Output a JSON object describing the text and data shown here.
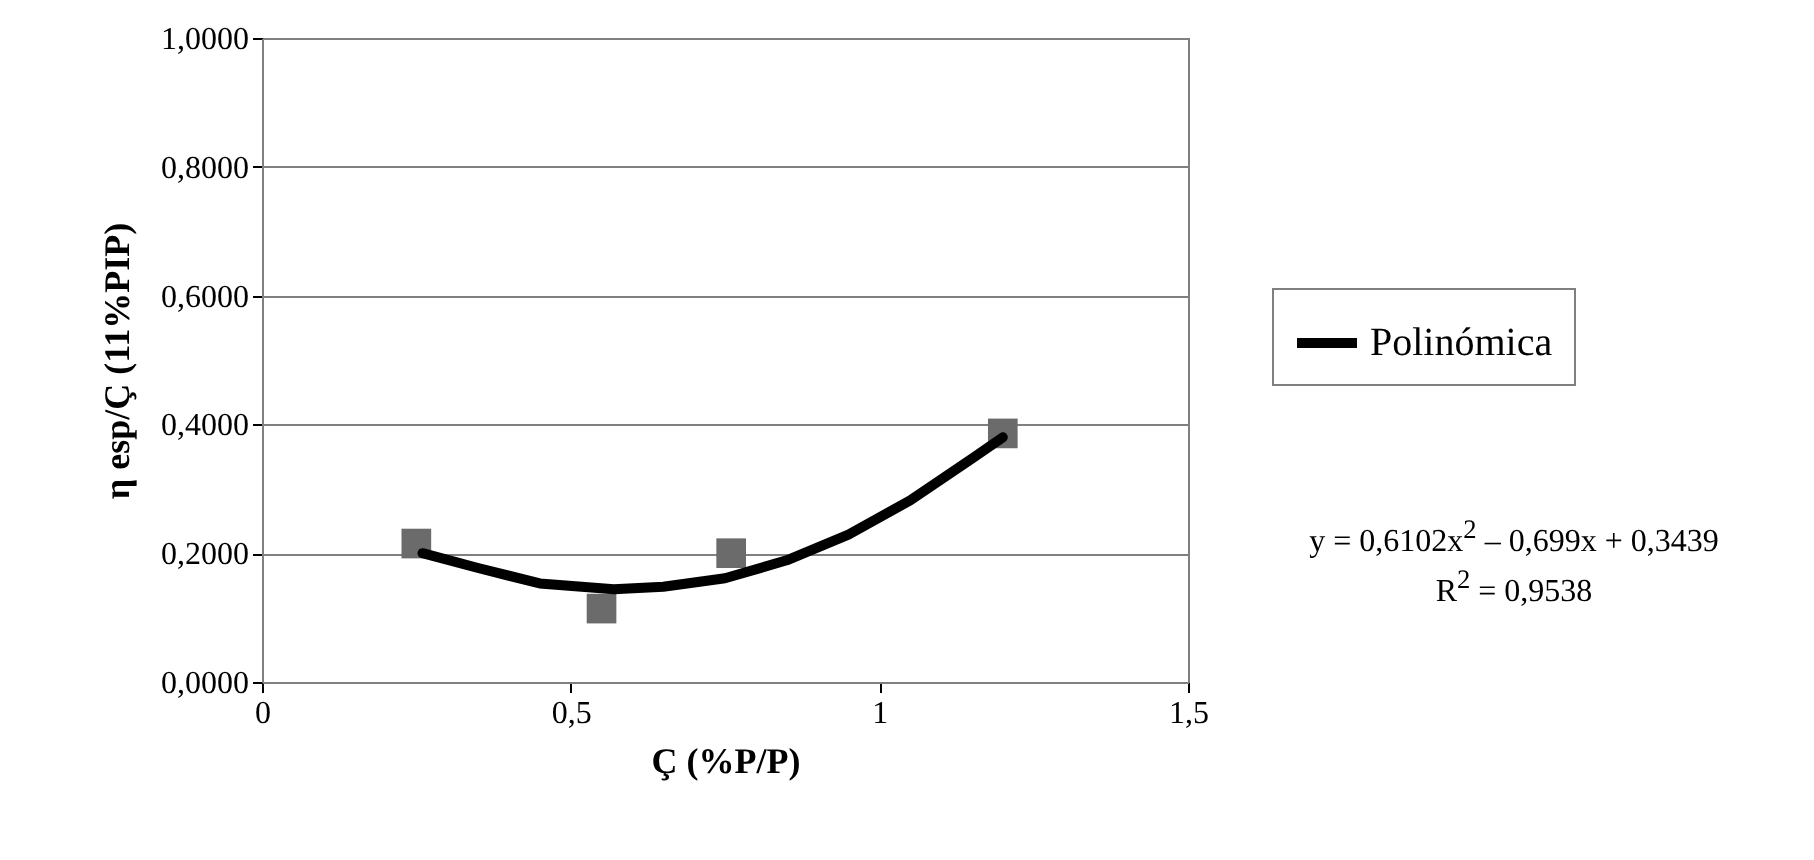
{
  "chart_data": {
    "type": "scatter",
    "xlabel": "Ç (%P/P)",
    "ylabel": "η esp/Ç (11%PIP)",
    "xlim": [
      0,
      1.5
    ],
    "xticks": [
      0,
      {
        "value": 0.5,
        "label": "0,5"
      },
      1,
      {
        "value": 1.5,
        "label": "1,5"
      }
    ],
    "ylim": [
      0,
      1
    ],
    "yticks": [
      {
        "value": 0,
        "label": "0,0000"
      },
      {
        "value": 0.2,
        "label": "0,2000"
      },
      {
        "value": 0.4,
        "label": "0,4000"
      },
      {
        "value": 0.6,
        "label": "0,6000"
      },
      {
        "value": 0.8,
        "label": "0,8000"
      },
      {
        "value": 1,
        "label": "1,0000"
      }
    ],
    "grid": "y",
    "legend": "right",
    "marker": "square",
    "series": [
      {
        "type": "scatter",
        "color": "#6b6b6b",
        "x": [
          0.25,
          0.55,
          0.76,
          1.2
        ],
        "values": [
          0.215,
          0.114,
          0.2,
          0.386
        ]
      },
      {
        "type": "line",
        "name": "Polinómica",
        "color": "#000000",
        "marker": "none",
        "x": [
          0.26,
          0.35,
          0.45,
          0.57,
          0.65,
          0.75,
          0.85,
          0.95,
          1.05,
          1.15,
          1.2
        ],
        "values": [
          0.2,
          0.177,
          0.153,
          0.144,
          0.148,
          0.161,
          0.189,
          0.229,
          0.282,
          0.347,
          0.38
        ]
      }
    ],
    "annotations": [
      "y = 0,6102x$^{2}$ – 0,699x + 0,3439",
      "R$^{2}$ = 0,9538"
    ]
  }
}
